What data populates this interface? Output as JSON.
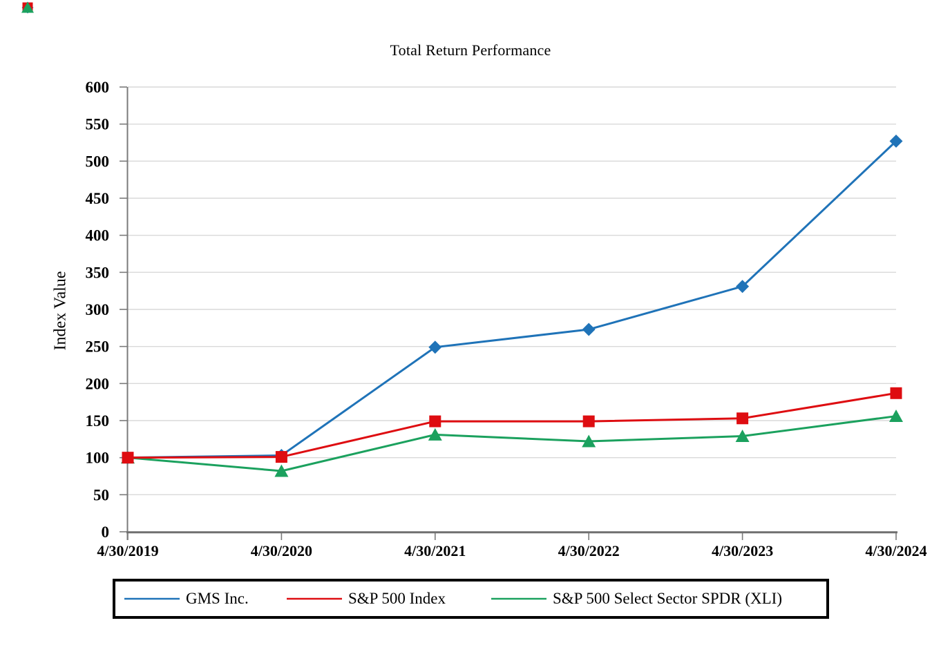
{
  "chart_data": {
    "type": "line",
    "title": "Total Return Performance",
    "xlabel": "",
    "ylabel": "Index Value",
    "ylim": [
      0,
      600
    ],
    "ytick_step": 50,
    "grid": "horizontal gridlines every 50, light gray",
    "grid_color": "#D9D9D9",
    "axis_color": "#7A7A7A",
    "background_color": "#FFFFFF",
    "legend_position": "bottom, boxed with thick black border",
    "legend_border_color": "#000000",
    "categories": [
      "4/30/2019",
      "4/30/2020",
      "4/30/2021",
      "4/30/2022",
      "4/30/2023",
      "4/30/2024"
    ],
    "series": [
      {
        "name": "GMS Inc.",
        "color": "#1F73B8",
        "marker": "diamond",
        "values": [
          100,
          103,
          249,
          273,
          331,
          527
        ]
      },
      {
        "name": "S&P 500 Index",
        "color": "#DE0D11",
        "marker": "square",
        "values": [
          100,
          101,
          149,
          149,
          153,
          187
        ]
      },
      {
        "name": "S&P 500 Select Sector SPDR (XLI)",
        "color": "#1BA15E",
        "marker": "triangle",
        "values": [
          100,
          82,
          131,
          122,
          129,
          156
        ]
      }
    ]
  }
}
